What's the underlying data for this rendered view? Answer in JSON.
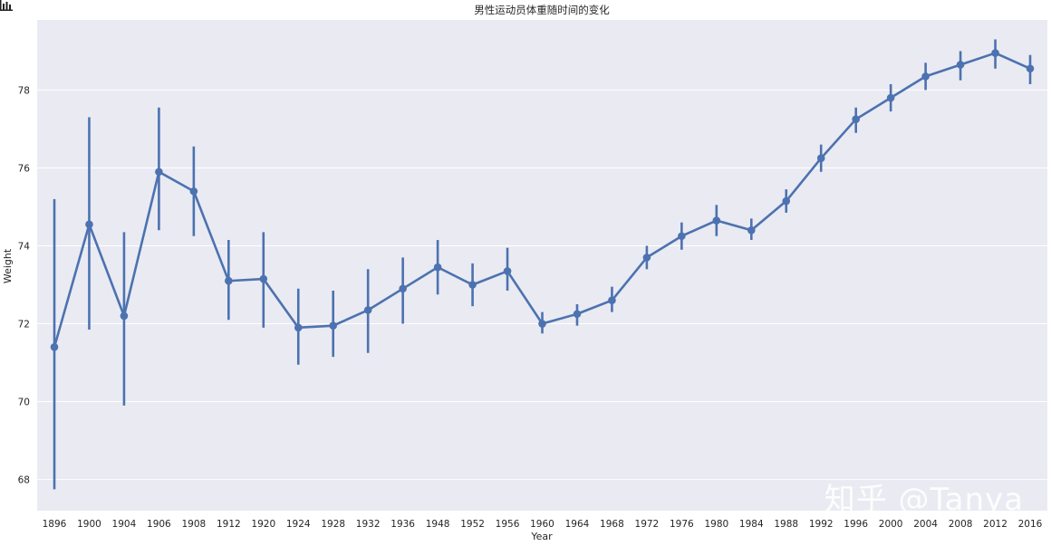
{
  "toolbar": {
    "icon": "bar-chart-icon"
  },
  "watermark": "知乎 @Tanya",
  "colors": {
    "plot_background": "#eaeaf2",
    "grid": "#ffffff",
    "series": "#4c72b0",
    "text": "#262626"
  },
  "chart_data": {
    "type": "line",
    "title": "男性运动员体重随时间的变化",
    "xlabel": "Year",
    "ylabel": "Weight",
    "ylim": [
      67.2,
      79.8
    ],
    "yticks": [
      68,
      70,
      72,
      74,
      76,
      78
    ],
    "grid": true,
    "x": [
      "1896",
      "1900",
      "1904",
      "1906",
      "1908",
      "1912",
      "1920",
      "1924",
      "1928",
      "1932",
      "1936",
      "1948",
      "1952",
      "1956",
      "1960",
      "1964",
      "1968",
      "1972",
      "1976",
      "1980",
      "1984",
      "1988",
      "1992",
      "1996",
      "2000",
      "2004",
      "2008",
      "2012",
      "2016"
    ],
    "series": [
      {
        "values": [
          71.4,
          74.55,
          72.2,
          75.9,
          75.4,
          73.1,
          73.15,
          71.9,
          71.95,
          72.35,
          72.9,
          73.45,
          73.0,
          73.35,
          72.0,
          72.25,
          72.6,
          73.7,
          74.25,
          74.65,
          74.4,
          75.15,
          76.25,
          77.25,
          77.8,
          78.35,
          78.65,
          78.95,
          78.55
        ],
        "ci_low": [
          67.75,
          71.85,
          69.9,
          74.4,
          74.25,
          72.1,
          71.9,
          70.95,
          71.15,
          71.25,
          72.0,
          72.75,
          72.45,
          72.85,
          71.75,
          71.95,
          72.3,
          73.4,
          73.9,
          74.25,
          74.15,
          74.85,
          75.9,
          76.9,
          77.45,
          78.0,
          78.25,
          78.55,
          78.15
        ],
        "ci_high": [
          75.2,
          77.3,
          74.35,
          77.55,
          76.55,
          74.15,
          74.35,
          72.9,
          72.85,
          73.4,
          73.7,
          74.15,
          73.55,
          73.95,
          72.3,
          72.5,
          72.95,
          74.0,
          74.6,
          75.05,
          74.7,
          75.45,
          76.6,
          77.55,
          78.15,
          78.7,
          79.0,
          79.3,
          78.9
        ]
      }
    ]
  }
}
